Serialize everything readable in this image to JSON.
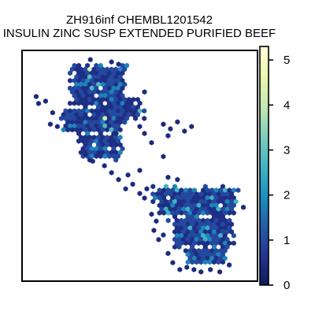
{
  "chart_data": {
    "type": "heatmap",
    "subtype": "hexbin",
    "title_line1": "ZH916inf CHEMBL1201542",
    "title_line2": "INSULIN ZINC SUSP EXTENDED PURIFIED BEEF",
    "xlabel": "",
    "ylabel": "",
    "axes_ticks_shown": false,
    "grid": false,
    "colorbar": {
      "colormap": "YlGnBu_r",
      "min": 0,
      "max": 5.3,
      "ticks": [
        0,
        1,
        2,
        3,
        4,
        5
      ],
      "tick_labels": [
        "0",
        "1",
        "2",
        "3",
        "4",
        "5"
      ],
      "stops": [
        "#081d58",
        "#253494",
        "#225ea8",
        "#1d91c0",
        "#41b6c4",
        "#7fcdbb",
        "#c7e9b4",
        "#edf8b1",
        "#ffffd9"
      ]
    },
    "clusters": [
      {
        "name": "upper-left",
        "regions": [
          {
            "x0": 0.2,
            "x1": 0.45,
            "y0": 0.06,
            "y1": 0.25
          },
          {
            "x0": 0.16,
            "x1": 0.44,
            "y0": 0.25,
            "y1": 0.36
          },
          {
            "x0": 0.24,
            "x1": 0.43,
            "y0": 0.36,
            "y1": 0.48
          },
          {
            "x0": 0.32,
            "x1": 0.52,
            "y0": 0.2,
            "y1": 0.3
          }
        ],
        "stray_points": [
          [
            0.1,
            0.22
          ],
          [
            0.13,
            0.27
          ],
          [
            0.06,
            0.2
          ],
          [
            0.07,
            0.23
          ],
          [
            0.12,
            0.32
          ],
          [
            0.15,
            0.33
          ],
          [
            0.4,
            0.36
          ],
          [
            0.5,
            0.33
          ],
          [
            0.52,
            0.36
          ],
          [
            0.55,
            0.4
          ],
          [
            0.6,
            0.32
          ],
          [
            0.63,
            0.34
          ],
          [
            0.66,
            0.31
          ],
          [
            0.69,
            0.35
          ],
          [
            0.72,
            0.33
          ],
          [
            0.62,
            0.37
          ],
          [
            0.35,
            0.5
          ],
          [
            0.38,
            0.53
          ],
          [
            0.41,
            0.56
          ],
          [
            0.45,
            0.54
          ],
          [
            0.5,
            0.52
          ],
          [
            0.44,
            0.6
          ],
          [
            0.47,
            0.58
          ],
          [
            0.6,
            0.46
          ],
          [
            0.27,
            0.45
          ],
          [
            0.3,
            0.48
          ],
          [
            0.38,
            0.05
          ],
          [
            0.41,
            0.06
          ],
          [
            0.29,
            0.04
          ],
          [
            0.52,
            0.18
          ]
        ],
        "density_levels": [
          {
            "value": 0.5,
            "share": 0.45
          },
          {
            "value": 1.0,
            "share": 0.38
          },
          {
            "value": 1.8,
            "share": 0.12
          },
          {
            "value": 2.8,
            "share": 0.04
          },
          {
            "value": 4.2,
            "share": 0.01
          }
        ]
      },
      {
        "name": "lower-right",
        "regions": [
          {
            "x0": 0.55,
            "x1": 0.92,
            "y0": 0.58,
            "y1": 0.72
          },
          {
            "x0": 0.62,
            "x1": 0.9,
            "y0": 0.72,
            "y1": 0.86
          },
          {
            "x0": 0.68,
            "x1": 0.88,
            "y0": 0.86,
            "y1": 0.93
          }
        ],
        "stray_points": [
          [
            0.55,
            0.71
          ],
          [
            0.57,
            0.74
          ],
          [
            0.56,
            0.78
          ],
          [
            0.58,
            0.82
          ],
          [
            0.6,
            0.8
          ],
          [
            0.62,
            0.88
          ],
          [
            0.64,
            0.92
          ],
          [
            0.67,
            0.95
          ],
          [
            0.7,
            0.94
          ],
          [
            0.73,
            0.95
          ],
          [
            0.76,
            0.96
          ],
          [
            0.8,
            0.95
          ],
          [
            0.84,
            0.96
          ],
          [
            0.88,
            0.93
          ],
          [
            0.53,
            0.6
          ],
          [
            0.52,
            0.64
          ],
          [
            0.5,
            0.62
          ],
          [
            0.94,
            0.68
          ],
          [
            0.62,
            0.55
          ],
          [
            0.66,
            0.56
          ]
        ],
        "density_levels": [
          {
            "value": 0.5,
            "share": 0.42
          },
          {
            "value": 1.0,
            "share": 0.4
          },
          {
            "value": 1.8,
            "share": 0.13
          },
          {
            "value": 2.6,
            "share": 0.05
          }
        ]
      }
    ]
  }
}
